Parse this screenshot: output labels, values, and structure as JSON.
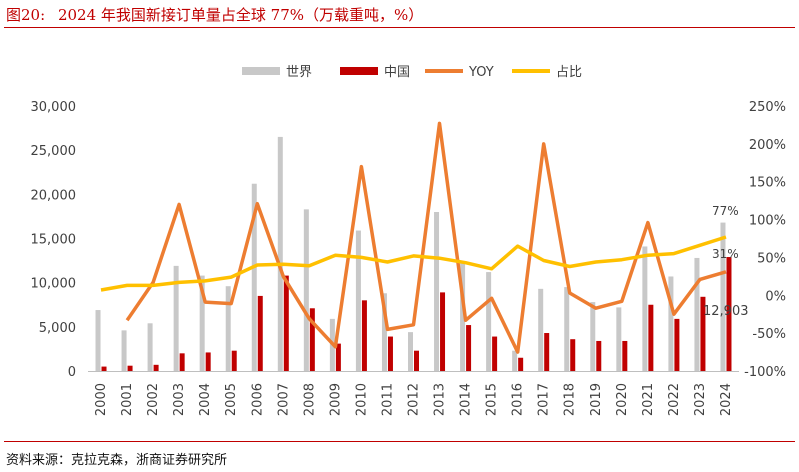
{
  "figure": {
    "number": "图20:",
    "title": "2024 年我国新接订单量占全球 77%（万载重吨，%）",
    "source": "资料来源：克拉克森，浙商证券研究所"
  },
  "colors": {
    "accent": "#c00000",
    "world_bar": "#c8c8c8",
    "china_bar": "#c00000",
    "yoy_line": "#ed7d31",
    "share_line": "#ffc000"
  },
  "chart_data": {
    "type": "bar",
    "categories": [
      "2000",
      "2001",
      "2002",
      "2003",
      "2004",
      "2005",
      "2006",
      "2007",
      "2008",
      "2009",
      "2010",
      "2011",
      "2012",
      "2013",
      "2014",
      "2015",
      "2016",
      "2017",
      "2018",
      "2019",
      "2020",
      "2021",
      "2022",
      "2023",
      "2024"
    ],
    "series": [
      {
        "name": "世界",
        "type": "bar",
        "axis": "left",
        "values": [
          6900,
          4600,
          5400,
          11900,
          10800,
          9600,
          21200,
          26500,
          18300,
          5900,
          15900,
          8800,
          4400,
          18000,
          12200,
          11200,
          2300,
          9300,
          9500,
          7800,
          7200,
          14100,
          10700,
          12800,
          16800
        ]
      },
      {
        "name": "中国",
        "type": "bar",
        "axis": "left",
        "values": [
          500,
          600,
          700,
          2000,
          2100,
          2300,
          8500,
          10800,
          7100,
          3100,
          8000,
          3900,
          2300,
          8900,
          5200,
          3900,
          1500,
          4300,
          3600,
          3400,
          3400,
          7500,
          5900,
          8400,
          12903
        ]
      },
      {
        "name": "YOY",
        "type": "line",
        "axis": "right",
        "unit": "%",
        "values": [
          null,
          -33,
          17,
          120,
          -9,
          -11,
          121,
          25,
          -31,
          -68,
          170,
          -45,
          -39,
          227,
          -33,
          -4,
          -75,
          200,
          3,
          -17,
          -8,
          96,
          -25,
          21,
          31
        ]
      },
      {
        "name": "占比",
        "type": "line",
        "axis": "right",
        "unit": "%",
        "values": [
          7,
          13,
          13,
          17,
          19,
          24,
          40,
          41,
          39,
          53,
          50,
          44,
          52,
          49,
          43,
          35,
          65,
          46,
          38,
          44,
          47,
          53,
          55,
          66,
          77
        ]
      }
    ],
    "left_axis": {
      "min": 0,
      "max": 30000,
      "ticks": [
        "0",
        "5,000",
        "10,000",
        "15,000",
        "20,000",
        "25,000",
        "30,000"
      ]
    },
    "right_axis": {
      "min": -100,
      "max": 250,
      "ticks": [
        "-100%",
        "-50%",
        "0%",
        "50%",
        "100%",
        "150%",
        "200%",
        "250%"
      ]
    },
    "legend": {
      "position": "top",
      "items": [
        "世界",
        "中国",
        "YOY",
        "占比"
      ]
    },
    "annotations": {
      "share_2024": "77%",
      "yoy_2024": "31%",
      "china_2024": "12,903"
    },
    "grid": false
  }
}
